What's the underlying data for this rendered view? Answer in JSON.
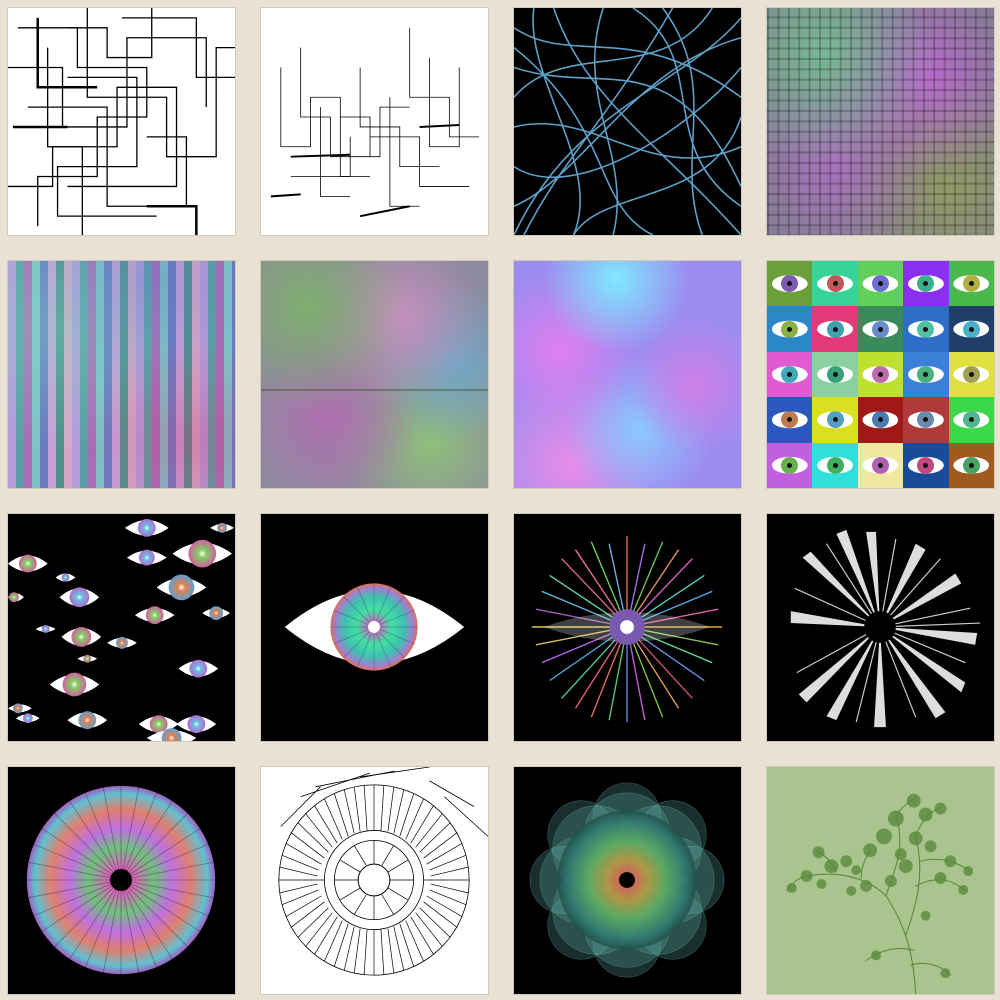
{
  "gallery": {
    "tiles": [
      {
        "icon": "abstract-lines-icon",
        "background": "#ffffff"
      },
      {
        "icon": "sketch-city-icon",
        "background": "#ffffff"
      },
      {
        "icon": "blue-curves-icon",
        "background": "#000000"
      },
      {
        "icon": "color-checker-icon",
        "background": "#8a7f98"
      },
      {
        "icon": "color-stripes-icon",
        "background": "#9a94c0"
      },
      {
        "icon": "blurred-noise-icon",
        "background": "#8c8a9e"
      },
      {
        "icon": "clouds-icon",
        "background": "#9d8cf0"
      },
      {
        "icon": "eye-grid-icon",
        "background": "#ffffff"
      },
      {
        "icon": "scattered-eyes-icon",
        "background": "#000000"
      },
      {
        "icon": "single-eye-icon",
        "background": "#000000"
      },
      {
        "icon": "burst-eye-icon",
        "background": "#000000"
      },
      {
        "icon": "white-rays-icon",
        "background": "#000000"
      },
      {
        "icon": "color-starburst-icon",
        "background": "#000000"
      },
      {
        "icon": "line-spiral-icon",
        "background": "#ffffff"
      },
      {
        "icon": "mandala-icon",
        "background": "#000000"
      },
      {
        "icon": "tree-icon",
        "background": "#a9c48f"
      }
    ]
  },
  "colors": {
    "page_background": "#e8e1d4",
    "blue_curves": "#5ea0c8",
    "tree": "#5b8a3c"
  }
}
